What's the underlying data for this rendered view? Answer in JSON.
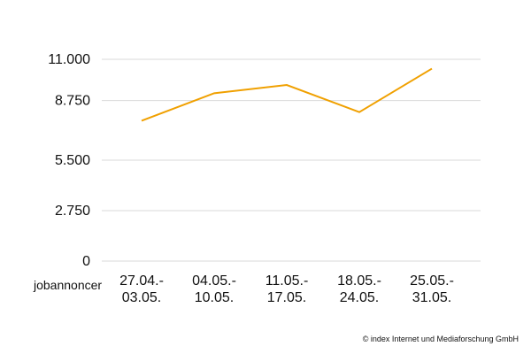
{
  "chart_data": {
    "type": "line",
    "categories": [
      [
        "27.04.-",
        "03.05."
      ],
      [
        "04.05.-",
        "10.05."
      ],
      [
        "11.05.-",
        "17.05."
      ],
      [
        "18.05.-",
        "24.05."
      ],
      [
        "25.05.-",
        "31.05."
      ]
    ],
    "series": [
      {
        "values": [
          7650,
          9150,
          9600,
          8120,
          10490
        ]
      }
    ],
    "yticks": [
      0,
      2750,
      5500,
      8750,
      11000
    ],
    "ytick_labels": [
      "0",
      "2.750",
      "5.500",
      "8.750",
      "11.000"
    ],
    "ylim": [
      0,
      11000
    ],
    "ylabel": "jobannoncer",
    "grid": true,
    "line_color": "#f0a000",
    "grid_color": "#d9d9d9"
  },
  "credit": "© index Internet und Mediaforschung GmbH"
}
